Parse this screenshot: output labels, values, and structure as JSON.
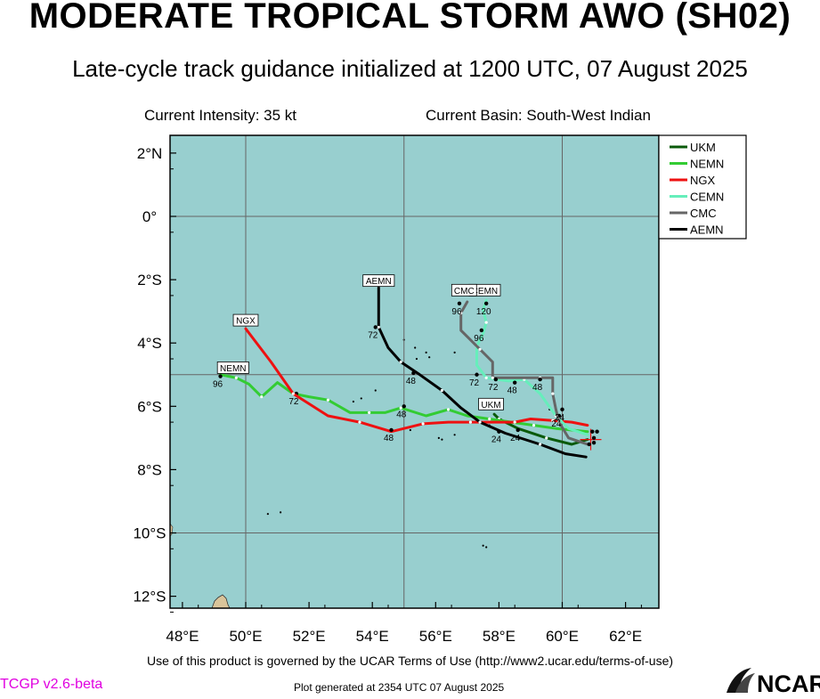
{
  "header": {
    "title": "MODERATE TROPICAL STORM AWO (SH02)",
    "subtitle": "Late-cycle track guidance initialized at 1200 UTC, 07 August 2025",
    "current_intensity": "Current Intensity: 35 kt",
    "current_basin": "Current Basin: South-West Indian"
  },
  "footer": {
    "terms": "Use of this product is governed by the UCAR Terms of Use (http://www2.ucar.edu/terms-of-use)",
    "version": "TCGP v2.6-beta",
    "generated": "Plot generated at 2354 UTC   07 August 2025",
    "logo_text": "NCAR"
  },
  "colors": {
    "ocean": "#98cfcf",
    "land": "#d9c49a",
    "UKM": "#0a5a0a",
    "NEMN": "#33cc33",
    "NGX": "#ee1111",
    "CEMN": "#66eebb",
    "CMC": "#666666",
    "AEMN": "#000000"
  },
  "map": {
    "lon_ticks": [
      "48°E",
      "50°E",
      "52°E",
      "54°E",
      "56°E",
      "58°E",
      "60°E",
      "62°E"
    ],
    "lat_ticks": [
      "2°N",
      "0°",
      "2°S",
      "4°S",
      "6°S",
      "8°S",
      "10°S",
      "12°S"
    ],
    "storm_position": {
      "lon": 60.9,
      "lat": -7.05
    },
    "legend": [
      "UKM",
      "NEMN",
      "NGX",
      "CEMN",
      "CMC",
      "AEMN"
    ],
    "tracks": [
      {
        "name": "UKM",
        "label_lon": 57.75,
        "label_lat": -6.0,
        "pts": [
          [
            60.8,
            -7.05
          ],
          [
            60.3,
            -7.2
          ],
          [
            59.5,
            -7.0
          ],
          [
            58.6,
            -6.7
          ],
          [
            58.0,
            -6.4
          ],
          [
            57.85,
            -6.25
          ]
        ],
        "marks": [
          {
            "lon": 58.6,
            "lat": -6.75,
            "text": "24"
          }
        ]
      },
      {
        "name": "NEMN",
        "label_lon": 49.6,
        "label_lat": -4.85,
        "pts": [
          [
            60.8,
            -6.8
          ],
          [
            59.8,
            -6.7
          ],
          [
            59.1,
            -6.6
          ],
          [
            58.4,
            -6.5
          ],
          [
            57.7,
            -6.4
          ],
          [
            57.0,
            -6.3
          ],
          [
            56.4,
            -6.1
          ],
          [
            55.7,
            -6.3
          ],
          [
            54.9,
            -6.05
          ],
          [
            54.4,
            -6.2
          ],
          [
            53.9,
            -6.2
          ],
          [
            53.3,
            -6.2
          ],
          [
            52.6,
            -5.8
          ],
          [
            52.0,
            -5.7
          ],
          [
            51.5,
            -5.6
          ],
          [
            51.0,
            -5.25
          ],
          [
            50.5,
            -5.7
          ],
          [
            50.1,
            -5.3
          ],
          [
            49.7,
            -5.1
          ],
          [
            49.2,
            -5.0
          ]
        ],
        "marks": [
          {
            "lon": 55.0,
            "lat": -6.0,
            "text": "48"
          },
          {
            "lon": 51.6,
            "lat": -5.6,
            "text": "72"
          },
          {
            "lon": 49.2,
            "lat": -5.05,
            "text": "96"
          }
        ]
      },
      {
        "name": "NGX",
        "label_lon": 50.0,
        "label_lat": -3.35,
        "pts": [
          [
            60.8,
            -6.6
          ],
          [
            60.3,
            -6.5
          ],
          [
            59.7,
            -6.45
          ],
          [
            59.0,
            -6.4
          ],
          [
            58.5,
            -6.5
          ],
          [
            57.8,
            -6.5
          ],
          [
            57.1,
            -6.5
          ],
          [
            56.4,
            -6.5
          ],
          [
            55.6,
            -6.55
          ],
          [
            54.6,
            -6.8
          ],
          [
            53.6,
            -6.5
          ],
          [
            52.6,
            -6.3
          ],
          [
            51.5,
            -5.6
          ],
          [
            50.8,
            -4.6
          ],
          [
            50.0,
            -3.55
          ]
        ],
        "marks": [
          {
            "lon": 54.6,
            "lat": -6.75,
            "text": "48"
          }
        ]
      },
      {
        "name": "CEMN",
        "label_lon": 57.55,
        "label_lat": -2.4,
        "pts": [
          [
            60.8,
            -6.9
          ],
          [
            60.2,
            -6.7
          ],
          [
            59.8,
            -6.3
          ],
          [
            59.3,
            -5.6
          ],
          [
            58.8,
            -5.15
          ],
          [
            58.3,
            -5.2
          ],
          [
            57.6,
            -5.1
          ],
          [
            57.3,
            -4.7
          ],
          [
            57.3,
            -4.1
          ],
          [
            57.5,
            -3.7
          ],
          [
            57.6,
            -3.35
          ],
          [
            57.5,
            -2.95
          ],
          [
            57.6,
            -2.65
          ]
        ],
        "marks": [
          {
            "lon": 59.9,
            "lat": -6.3,
            "text": "24"
          },
          {
            "lon": 58.5,
            "lat": -5.25,
            "text": "48"
          },
          {
            "lon": 57.3,
            "lat": -5.0,
            "text": "72"
          },
          {
            "lon": 57.45,
            "lat": -3.6,
            "text": "96"
          },
          {
            "lon": 57.6,
            "lat": -2.75,
            "text": "120"
          }
        ]
      },
      {
        "name": "CMC",
        "label_lon": 56.9,
        "label_lat": -2.4,
        "pts": [
          [
            60.8,
            -7.2
          ],
          [
            60.2,
            -7.0
          ],
          [
            59.9,
            -6.5
          ],
          [
            59.8,
            -6.1
          ],
          [
            59.7,
            -5.6
          ],
          [
            59.7,
            -5.1
          ],
          [
            59.3,
            -5.1
          ],
          [
            58.5,
            -5.1
          ],
          [
            57.8,
            -5.1
          ],
          [
            57.8,
            -4.6
          ],
          [
            57.4,
            -4.2
          ],
          [
            56.8,
            -3.6
          ],
          [
            56.8,
            -3.05
          ],
          [
            57.0,
            -2.7
          ]
        ],
        "marks": [
          {
            "lon": 60.0,
            "lat": -6.1,
            "text": "24"
          },
          {
            "lon": 59.3,
            "lat": -5.15,
            "text": "48"
          },
          {
            "lon": 57.9,
            "lat": -5.15,
            "text": "72"
          },
          {
            "lon": 56.75,
            "lat": -2.75,
            "text": "96"
          }
        ]
      },
      {
        "name": "AEMN",
        "label_lon": 54.2,
        "label_lat": -2.1,
        "pts": [
          [
            60.75,
            -7.6
          ],
          [
            60.1,
            -7.5
          ],
          [
            59.3,
            -7.2
          ],
          [
            58.2,
            -6.85
          ],
          [
            57.4,
            -6.5
          ],
          [
            56.8,
            -6.05
          ],
          [
            56.2,
            -5.5
          ],
          [
            55.5,
            -5.0
          ],
          [
            54.9,
            -4.6
          ],
          [
            54.5,
            -4.15
          ],
          [
            54.2,
            -3.5
          ],
          [
            54.2,
            -2.25
          ]
        ],
        "marks": [
          {
            "lon": 58.0,
            "lat": -6.8,
            "text": "24"
          },
          {
            "lon": 55.3,
            "lat": -4.95,
            "text": "48"
          },
          {
            "lon": 54.1,
            "lat": -3.5,
            "text": "72"
          }
        ]
      }
    ]
  }
}
